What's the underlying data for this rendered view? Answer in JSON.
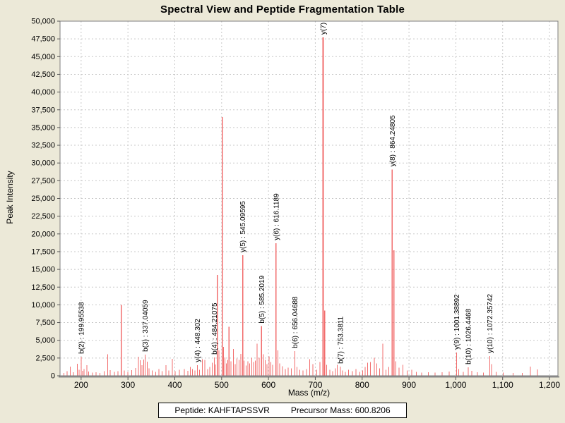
{
  "title": "Spectral View and Peptide Fragmentation Table",
  "footer": {
    "peptide_label": "Peptide:",
    "peptide_value": "KAHFTAPSSVR",
    "precursor_label": "Precursor Mass:",
    "precursor_value": "600.8206"
  },
  "chart_data": {
    "type": "bar",
    "title": "Spectral View and Peptide Fragmentation Table",
    "xlabel": "Mass (m/z)",
    "ylabel": "Peak Intensity",
    "xlim": [
      155,
      1218
    ],
    "ylim": [
      0,
      50000
    ],
    "x_ticks": [
      200,
      300,
      400,
      500,
      600,
      700,
      800,
      900,
      1000,
      1100,
      1200
    ],
    "x_tick_labels": [
      "200",
      "300",
      "400",
      "500",
      "600",
      "700",
      "800",
      "900",
      "1,000",
      "1,100",
      "1,200"
    ],
    "y_tick_step": 2500,
    "y_tick_labels": [
      "0",
      "2,500",
      "5,000",
      "7,500",
      "10,000",
      "12,500",
      "15,000",
      "17,500",
      "20,000",
      "22,500",
      "25,000",
      "27,500",
      "30,000",
      "32,500",
      "35,000",
      "37,500",
      "40,000",
      "42,500",
      "45,000",
      "47,500",
      "50,000"
    ],
    "grid": "dashed",
    "legend": "none",
    "colors": {
      "page_background": "#ece9d8",
      "plot_background": "#ffffff",
      "grid": "#c8c8c8",
      "frame": "#7f7f7f",
      "peak": "#f26d6d",
      "label_text": "#000000"
    },
    "annotated_fragments": [
      {
        "ion": "b(2)",
        "value": "199.95538",
        "mz": 199.95538,
        "intensity": 2700
      },
      {
        "ion": "b(3)",
        "value": "337.04059",
        "mz": 337.04059,
        "intensity": 3000
      },
      {
        "ion": "y(4)",
        "value": "448.302",
        "mz": 448.302,
        "intensity": 1500
      },
      {
        "ion": "b(4)",
        "value": "484.21075",
        "mz": 484.21075,
        "intensity": 2600
      },
      {
        "ion": "y(5)",
        "value": "545.09595",
        "mz": 545.09595,
        "intensity": 17000
      },
      {
        "ion": "b(5)",
        "value": "585.2019",
        "mz": 585.2019,
        "intensity": 7000
      },
      {
        "ion": "y(6)",
        "value": "616.1189",
        "mz": 616.1189,
        "intensity": 18700
      },
      {
        "ion": "b(6)",
        "value": "656.04688",
        "mz": 656.04688,
        "intensity": 3500
      },
      {
        "ion": "y(7)",
        "value": "",
        "mz": 716.7,
        "intensity": 47700
      },
      {
        "ion": "b(7)",
        "value": "753.3811",
        "mz": 753.3811,
        "intensity": 1300
      },
      {
        "ion": "y(8)",
        "value": "864.24805",
        "mz": 864.24805,
        "intensity": 29100
      },
      {
        "ion": "y(9)",
        "value": "1001.38892",
        "mz": 1001.38892,
        "intensity": 3300
      },
      {
        "ion": "b(10)",
        "value": "1026.4468",
        "mz": 1026.4468,
        "intensity": 1200
      },
      {
        "ion": "y(10)",
        "value": "1072.35742",
        "mz": 1072.35742,
        "intensity": 2800
      }
    ],
    "peaks": [
      [
        163,
        400
      ],
      [
        170,
        650
      ],
      [
        177,
        1300
      ],
      [
        184,
        500
      ],
      [
        192,
        1700
      ],
      [
        196,
        850
      ],
      [
        203,
        700
      ],
      [
        206,
        950
      ],
      [
        212,
        1500
      ],
      [
        216,
        600
      ],
      [
        224,
        450
      ],
      [
        232,
        500
      ],
      [
        240,
        400
      ],
      [
        249,
        650
      ],
      [
        257,
        3050
      ],
      [
        262,
        800
      ],
      [
        271,
        550
      ],
      [
        279,
        650
      ],
      [
        286,
        10000
      ],
      [
        292,
        750
      ],
      [
        300,
        550
      ],
      [
        308,
        800
      ],
      [
        316,
        1100
      ],
      [
        322,
        2700
      ],
      [
        326,
        2200
      ],
      [
        330,
        1500
      ],
      [
        334,
        2300
      ],
      [
        341,
        2000
      ],
      [
        345,
        1050
      ],
      [
        352,
        750
      ],
      [
        359,
        550
      ],
      [
        366,
        950
      ],
      [
        373,
        650
      ],
      [
        381,
        1500
      ],
      [
        387,
        750
      ],
      [
        395,
        2400
      ],
      [
        401,
        650
      ],
      [
        410,
        850
      ],
      [
        420,
        950
      ],
      [
        428,
        700
      ],
      [
        433,
        1250
      ],
      [
        438,
        950
      ],
      [
        443,
        750
      ],
      [
        453,
        850
      ],
      [
        459,
        2350
      ],
      [
        464,
        2250
      ],
      [
        470,
        950
      ],
      [
        475,
        1250
      ],
      [
        480,
        1850
      ],
      [
        487,
        1600
      ],
      [
        491,
        14200
      ],
      [
        494,
        3600
      ],
      [
        501.5,
        36500
      ],
      [
        504,
        4100
      ],
      [
        507,
        2600
      ],
      [
        510,
        1750
      ],
      [
        513,
        2250
      ],
      [
        516,
        6900
      ],
      [
        520,
        2050
      ],
      [
        525,
        3800
      ],
      [
        529,
        1650
      ],
      [
        533,
        2450
      ],
      [
        537,
        2250
      ],
      [
        541,
        3100
      ],
      [
        548,
        2150
      ],
      [
        552,
        1450
      ],
      [
        556,
        2050
      ],
      [
        560,
        1750
      ],
      [
        564,
        2550
      ],
      [
        568,
        1950
      ],
      [
        572,
        2150
      ],
      [
        576,
        4500
      ],
      [
        580,
        2550
      ],
      [
        589,
        3050
      ],
      [
        593,
        2250
      ],
      [
        597,
        1650
      ],
      [
        601,
        2750
      ],
      [
        605,
        1950
      ],
      [
        609,
        1550
      ],
      [
        620,
        3600
      ],
      [
        624,
        1750
      ],
      [
        630,
        1350
      ],
      [
        636,
        950
      ],
      [
        642,
        1150
      ],
      [
        649,
        1050
      ],
      [
        661,
        1250
      ],
      [
        667,
        850
      ],
      [
        674,
        750
      ],
      [
        681,
        950
      ],
      [
        688,
        2350
      ],
      [
        695,
        1650
      ],
      [
        703,
        850
      ],
      [
        710,
        1950
      ],
      [
        720,
        9200
      ],
      [
        724,
        1550
      ],
      [
        731,
        850
      ],
      [
        737,
        650
      ],
      [
        743,
        1050
      ],
      [
        747,
        1550
      ],
      [
        758,
        750
      ],
      [
        764,
        550
      ],
      [
        771,
        850
      ],
      [
        779,
        650
      ],
      [
        787,
        950
      ],
      [
        795,
        550
      ],
      [
        801,
        750
      ],
      [
        806,
        1250
      ],
      [
        812,
        1850
      ],
      [
        818,
        1950
      ],
      [
        826,
        2550
      ],
      [
        831,
        1750
      ],
      [
        837,
        1050
      ],
      [
        844,
        4500
      ],
      [
        851,
        850
      ],
      [
        857,
        1250
      ],
      [
        868,
        17700
      ],
      [
        872,
        2050
      ],
      [
        879,
        1150
      ],
      [
        887,
        1550
      ],
      [
        896,
        750
      ],
      [
        906,
        850
      ],
      [
        916,
        550
      ],
      [
        927,
        450
      ],
      [
        941,
        500
      ],
      [
        956,
        450
      ],
      [
        971,
        500
      ],
      [
        986,
        600
      ],
      [
        1006,
        950
      ],
      [
        1016,
        550
      ],
      [
        1034,
        700
      ],
      [
        1046,
        500
      ],
      [
        1059,
        450
      ],
      [
        1076,
        1650
      ],
      [
        1086,
        550
      ],
      [
        1101,
        450
      ],
      [
        1122,
        400
      ],
      [
        1142,
        420
      ],
      [
        1159,
        1300
      ],
      [
        1174,
        900
      ]
    ]
  }
}
